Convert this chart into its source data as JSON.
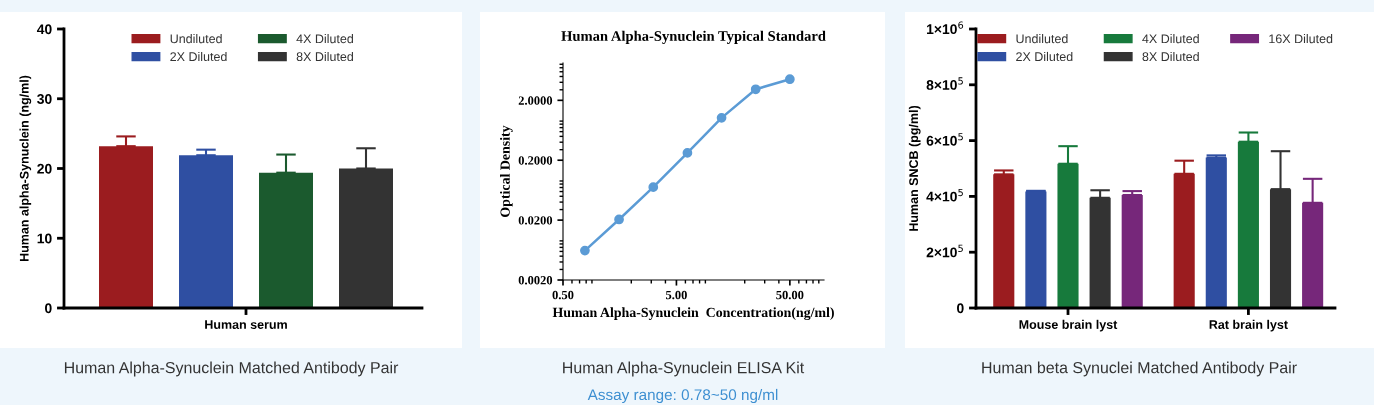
{
  "chart_data": [
    {
      "type": "bar",
      "ylabel": "Human alpha-Synuclein (ng/ml)",
      "categories": [
        "Human serum"
      ],
      "ylim": [
        0,
        40
      ],
      "yticks": [
        0,
        10,
        20,
        30,
        40
      ],
      "grid": false,
      "legend": "top",
      "series": [
        {
          "name": "Undiluted",
          "color": "#9b1c1f",
          "values": [
            23.2
          ],
          "errors": [
            [
              23.2,
              24.6
            ]
          ]
        },
        {
          "name": "2X Diluted",
          "color": "#2f4fa2",
          "values": [
            21.9
          ],
          "errors": [
            [
              21.9,
              22.7
            ]
          ]
        },
        {
          "name": "4X Diluted",
          "color": "#1b5a2e",
          "values": [
            19.4
          ],
          "errors": [
            [
              19.4,
              22.0
            ]
          ]
        },
        {
          "name": "8X Diluted",
          "color": "#333333",
          "values": [
            20.0
          ],
          "errors": [
            [
              20.0,
              22.9
            ]
          ]
        }
      ],
      "annotations": [
        "Human Alpha-Synuclein Matched Antibody Pair"
      ]
    },
    {
      "type": "line",
      "title": "Human Alpha-Synuclein Typical Standard",
      "xlabel": "Human Alpha-Synuclein  Concentration(ng/ml)",
      "ylabel": "Optical Density",
      "log": "xy",
      "marker": "circle",
      "line_style": "solid",
      "grid": false,
      "x": [
        0.78,
        1.56,
        3.125,
        6.25,
        12.5,
        25,
        50
      ],
      "values": [
        0.0062,
        0.0205,
        0.071,
        0.265,
        1.02,
        3.06,
        4.5
      ],
      "color": "#5b9bd5",
      "xlim": [
        0.5,
        100
      ],
      "ylim": [
        0.002,
        8.4
      ],
      "xticks": [
        {
          "value": 0.5,
          "label": "0.50"
        },
        {
          "value": 5,
          "label": "5.00"
        },
        {
          "value": 50,
          "label": "50.00"
        }
      ],
      "yticks": [
        {
          "value": 0.002,
          "label": "0.0020"
        },
        {
          "value": 0.02,
          "label": "0.0200"
        },
        {
          "value": 0.2,
          "label": "0.2000"
        },
        {
          "value": 2,
          "label": "2.0000"
        }
      ],
      "annotations": [
        "Human Alpha-Synuclein ELISA Kit",
        "Assay range: 0.78~50 ng/ml"
      ]
    },
    {
      "type": "bar",
      "ylabel": "Human SNCB (pg/ml)",
      "categories": [
        "Mouse brain lyst",
        "Rat brain lyst"
      ],
      "ylim": [
        0,
        1000000
      ],
      "grid": false,
      "legend": "top",
      "yticks": [
        0,
        {
          "value": 200000,
          "label": "2×10$^{5}$"
        },
        {
          "value": 400000,
          "label": "4×10$^{5}$"
        },
        {
          "value": 600000,
          "label": "6×10$^{5}$"
        },
        {
          "value": 800000,
          "label": "8×10$^{5}$"
        },
        {
          "value": 1000000,
          "label": "1×10$^{6}$"
        }
      ],
      "series": [
        {
          "name": "Undiluted",
          "color": "#9b1c1f",
          "values": [
            479000,
            481000
          ],
          "errors": [
            [
              479000,
              493000
            ],
            [
              481000,
              528000
            ]
          ]
        },
        {
          "name": "2X Diluted",
          "color": "#2f4fa2",
          "values": [
            418000,
            539000
          ],
          "errors": [
            [
              418000,
              420000
            ],
            [
              539000,
              547000
            ]
          ]
        },
        {
          "name": "4X Diluted",
          "color": "#177a3c",
          "values": [
            517000,
            596000
          ],
          "errors": [
            [
              517000,
              580000
            ],
            [
              596000,
              629000
            ]
          ]
        },
        {
          "name": "8X Diluted",
          "color": "#333333",
          "values": [
            395000,
            426000
          ],
          "errors": [
            [
              395000,
              422000
            ],
            [
              426000,
              562000
            ]
          ]
        },
        {
          "name": "16X Diluted",
          "color": "#76277a",
          "values": [
            405000,
            377000
          ],
          "errors": [
            [
              405000,
              419000
            ],
            [
              377000,
              463000
            ]
          ]
        }
      ],
      "annotations": [
        "Human beta Synuclei Matched Antibody Pair"
      ]
    }
  ]
}
